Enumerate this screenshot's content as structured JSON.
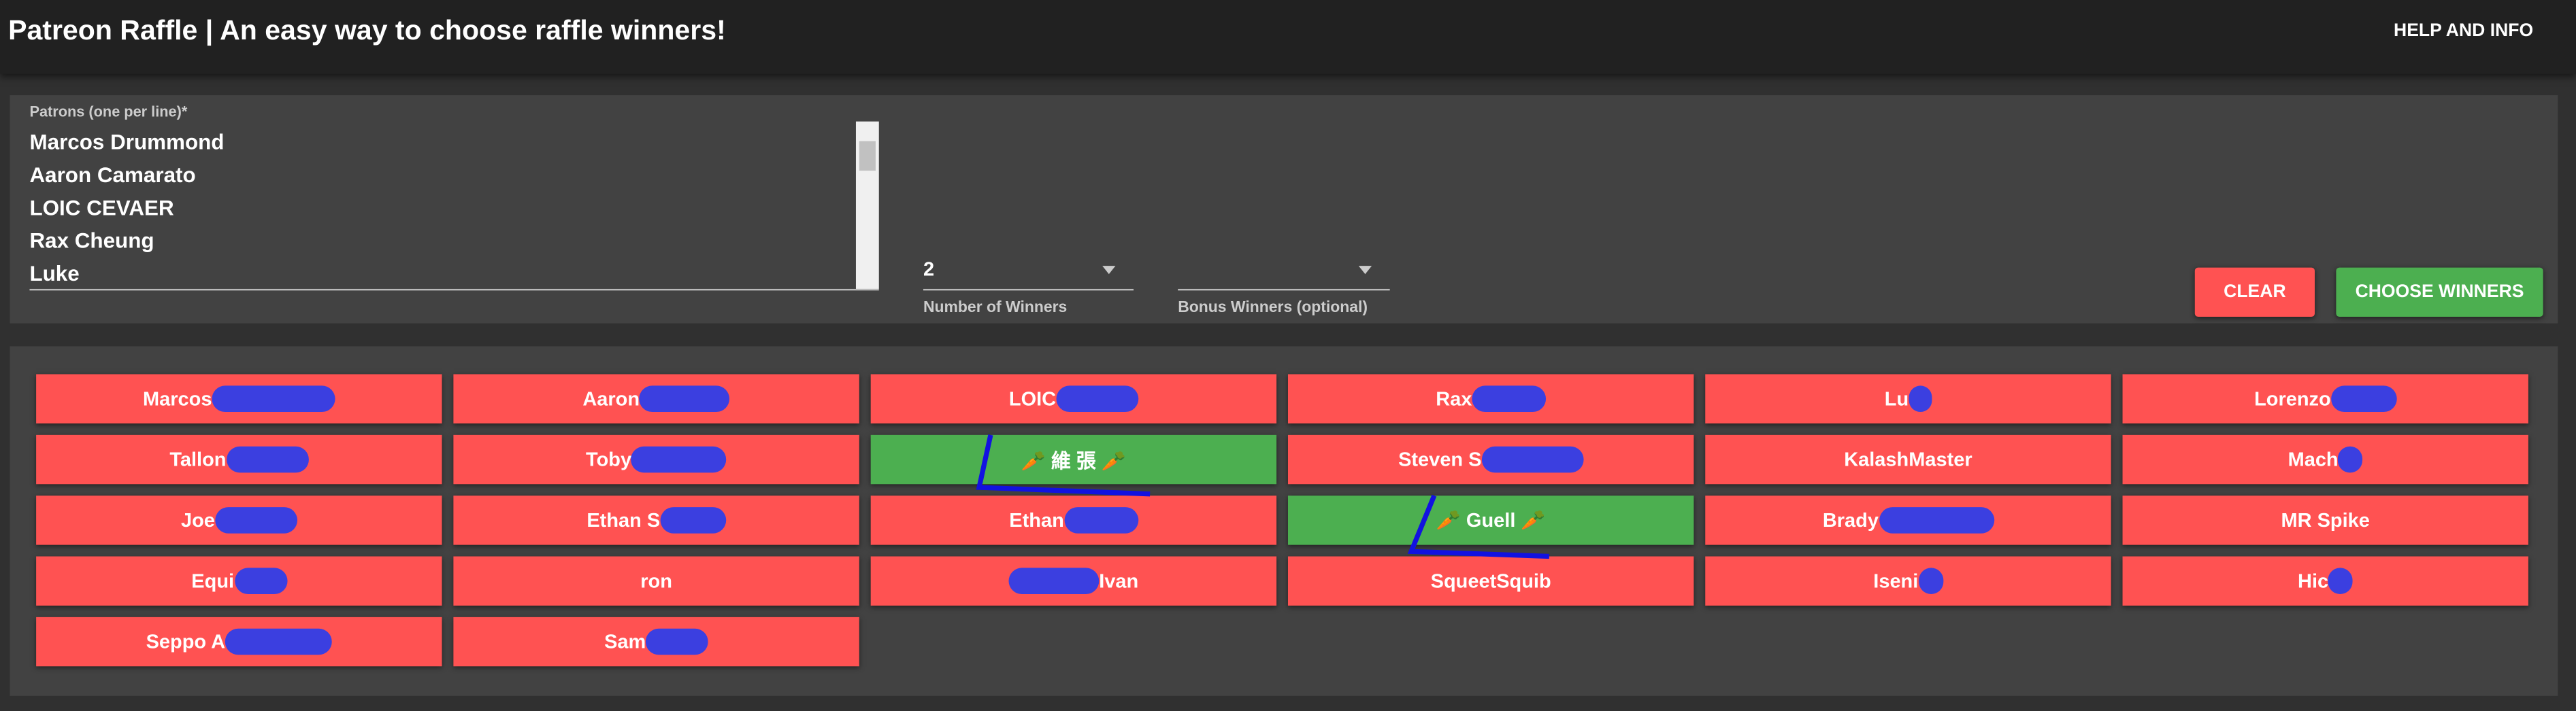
{
  "header": {
    "title": "Patreon Raffle | An easy way to choose raffle winners!",
    "help": "HELP AND INFO"
  },
  "form": {
    "patrons_label": "Patrons (one per line)*",
    "patrons": [
      "Marcos Drummond",
      "Aaron Camarato",
      "LOIC CEVAER",
      "Rax Cheung",
      "Luke"
    ],
    "winners_value": 2,
    "winners_label": "Number of Winners",
    "bonus_label": "Bonus Winners (optional)",
    "clear": "CLEAR",
    "choose": "CHOOSE WINNERS"
  },
  "results": [
    {
      "name": "Marcos",
      "winner": false
    },
    {
      "name": "Aaron",
      "winner": false
    },
    {
      "name": "LOIC",
      "winner": false
    },
    {
      "name": "Rax",
      "winner": false
    },
    {
      "name": "Lu",
      "winner": false
    },
    {
      "name": "Lorenzo",
      "winner": false
    },
    {
      "name": "Tallon",
      "winner": false
    },
    {
      "name": "Toby",
      "winner": false
    },
    {
      "name": "🥕 維 張 🥕",
      "winner": true
    },
    {
      "name": "Steven S",
      "winner": false
    },
    {
      "name": "KalashMaster",
      "winner": false
    },
    {
      "name": "Mach",
      "winner": false
    },
    {
      "name": "Joe",
      "winner": false
    },
    {
      "name": "Ethan S",
      "winner": false
    },
    {
      "name": "Ethan",
      "winner": false
    },
    {
      "name": "🥕 Guell 🥕",
      "winner": true
    },
    {
      "name": "Brady",
      "winner": false
    },
    {
      "name": "MR Spike",
      "winner": false
    },
    {
      "name": "Equi",
      "winner": false
    },
    {
      "name": "ron",
      "winner": false
    },
    {
      "name": "Ivan",
      "winner": false
    },
    {
      "name": "SqueetSquib",
      "winner": false
    },
    {
      "name": "Iseni",
      "winner": false
    },
    {
      "name": "Hic",
      "winner": false
    },
    {
      "name": "Seppo A",
      "winner": false
    },
    {
      "name": "Sam",
      "winner": false
    }
  ]
}
